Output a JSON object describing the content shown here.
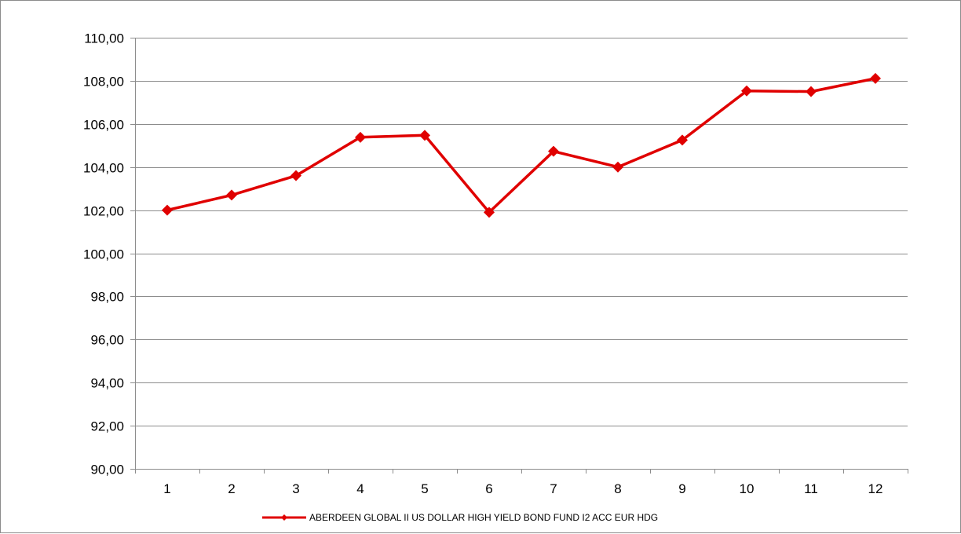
{
  "chart_data": {
    "type": "line",
    "title": "",
    "xlabel": "",
    "ylabel": "",
    "categories": [
      "1",
      "2",
      "3",
      "4",
      "5",
      "6",
      "7",
      "8",
      "9",
      "10",
      "11",
      "12"
    ],
    "series": [
      {
        "name": "ABERDEEN GLOBAL II US DOLLAR HIGH YIELD BOND FUND I2 ACC EUR HDG",
        "color": "#e00000",
        "marker": "diamond",
        "values": [
          102.0,
          102.7,
          103.6,
          105.38,
          105.47,
          101.9,
          104.73,
          104.0,
          105.25,
          107.53,
          107.5,
          108.11
        ]
      }
    ],
    "ylim": [
      90,
      110
    ],
    "yticks": [
      "90,00",
      "92,00",
      "94,00",
      "96,00",
      "98,00",
      "100,00",
      "102,00",
      "104,00",
      "106,00",
      "108,00",
      "110,00"
    ],
    "grid": "horizontal",
    "legend_position": "bottom"
  }
}
